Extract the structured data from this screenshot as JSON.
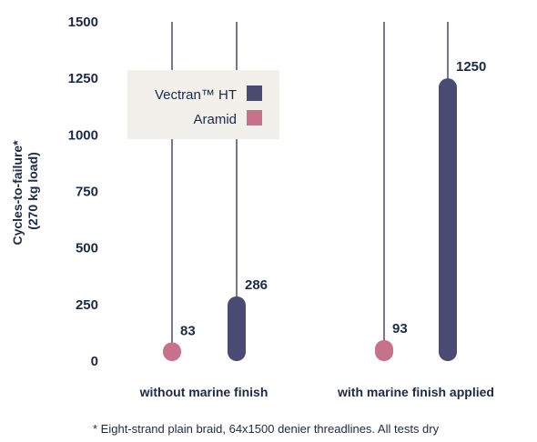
{
  "chart_data": {
    "type": "bar",
    "categories": [
      "without marine finish",
      "with marine finish applied"
    ],
    "series": [
      {
        "name": "Vectran™ HT",
        "color": "#4a4a72",
        "values": [
          286,
          1250
        ]
      },
      {
        "name": "Aramid",
        "color": "#c7728b",
        "values": [
          83,
          93
        ]
      }
    ],
    "ylabel_lines": [
      "Cycles-to-failure*",
      "(270 kg load)"
    ],
    "ylim": [
      0,
      1500
    ],
    "yticks": [
      0,
      250,
      500,
      750,
      1000,
      1250,
      1500
    ],
    "grid": false,
    "legend_position": "top-left"
  },
  "footnote": "* Eight-strand plain braid, 64x1500 denier threadlines.  All tests dry",
  "colors": {
    "text": "#1c2a48",
    "legend_bg": "#f1f0ea",
    "line": "#4a4a72"
  }
}
